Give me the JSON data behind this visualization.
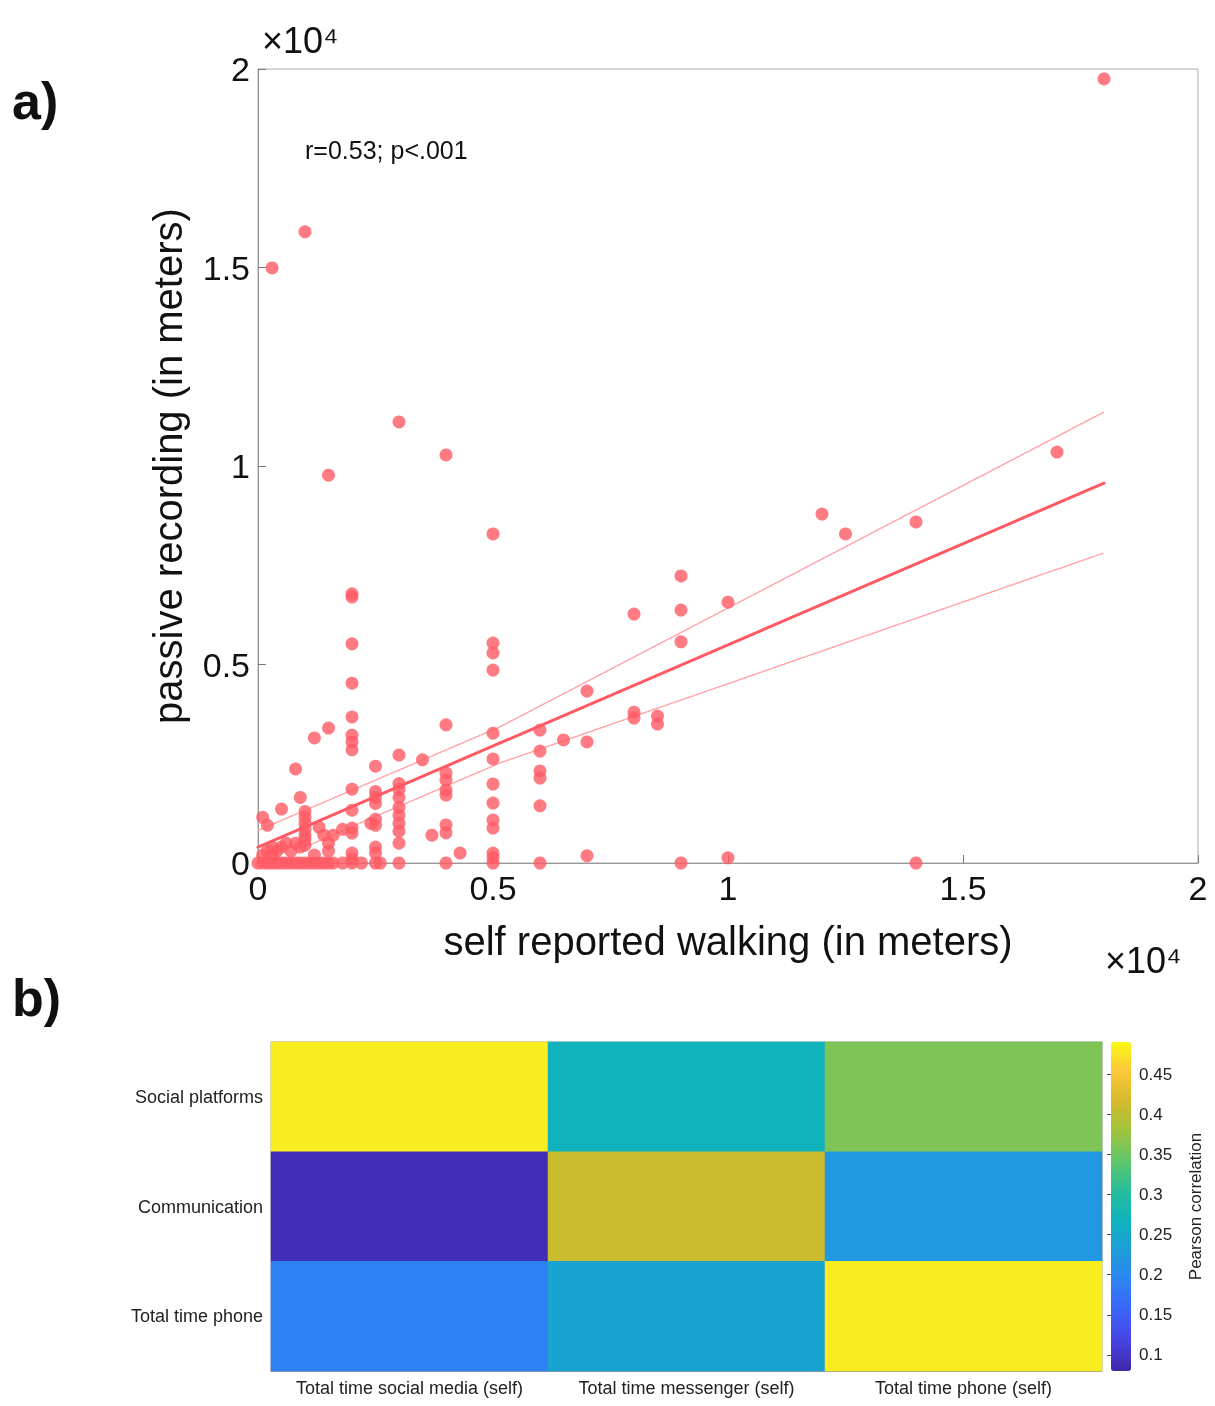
{
  "chart_data": [
    {
      "type": "scatter",
      "xlabel": "self reported walking (in meters)",
      "ylabel": "passive recording (in meters)",
      "annotations": [
        "a)",
        "r=0.53; p<.001",
        "×10⁴",
        "×10⁴"
      ],
      "xlim": [
        0,
        2
      ],
      "ylim": [
        0,
        2
      ],
      "xticks": [
        0,
        0.5,
        1,
        1.5,
        2
      ],
      "yticks": [
        0,
        0.5,
        1,
        1.5,
        2
      ],
      "grid": false,
      "series": [
        {
          "type": "scatter",
          "color": "#ff5a64",
          "marker": "circle",
          "x": [
            0,
            0.01,
            0.02,
            0.03,
            0.04,
            0.05,
            0.06,
            0.07,
            0.08,
            0.09,
            0.1,
            0.11,
            0.12,
            0.13,
            0.14,
            0.15,
            0.16,
            0.01,
            0.02,
            0.03,
            0.04,
            0.05,
            0.06,
            0.07,
            0.08,
            0.09,
            0.1,
            0.01,
            0.02,
            0.03,
            0.05,
            0.08,
            0.12,
            0.15,
            0.09,
            0.1,
            0.1,
            0.1,
            0.1,
            0.1,
            0.1,
            0.12,
            0.13,
            0.14,
            0.15,
            0.15,
            0.16,
            0.2,
            0.2,
            0.2,
            0.2,
            0.2,
            0.2,
            0.2,
            0.2,
            0.2,
            0.2,
            0.2,
            0.2,
            0.2,
            0.2,
            0.2,
            0.18,
            0.18,
            0.22,
            0.25,
            0.25,
            0.25,
            0.25,
            0.25,
            0.25,
            0.25,
            0.25,
            0.25,
            0.24,
            0.26,
            0.3,
            0.3,
            0.3,
            0.3,
            0.3,
            0.3,
            0.3,
            0.3,
            0.3,
            0.3,
            0.35,
            0.37,
            0.43,
            0.4,
            0.4,
            0.4,
            0.4,
            0.4,
            0.4,
            0.4,
            0.4,
            0.5,
            0.5,
            0.5,
            0.5,
            0.5,
            0.5,
            0.5,
            0.5,
            0.5,
            0.5,
            0.5,
            0.5,
            0.5,
            0.6,
            0.6,
            0.6,
            0.6,
            0.6,
            0.6,
            0.65,
            0.7,
            0.7,
            0.7,
            0.8,
            0.8,
            0.8,
            0.85,
            0.85,
            0.9,
            0.9,
            0.9,
            0.9,
            1,
            1,
            1.2,
            1.25,
            1.4,
            1.4,
            1.7,
            1.8,
            0.03,
            0.1,
            0.15,
            0.3,
            0.4
          ],
          "values": [
            0,
            0,
            0,
            0,
            0,
            0,
            0,
            0,
            0,
            0,
            0,
            0,
            0,
            0,
            0,
            0,
            0,
            0.02,
            0.03,
            0.02,
            0.03,
            0.04,
            0.05,
            0.03,
            0.05,
            0.04,
            0.06,
            0.115,
            0.095,
            0.04,
            0.136,
            0.237,
            0.315,
            0.34,
            0.165,
            0.13,
            0.115,
            0.1,
            0.085,
            0.07,
            0.045,
            0.02,
            0.09,
            0.07,
            0.05,
            0.03,
            0.07,
            0.678,
            0.67,
            0.552,
            0.453,
            0.368,
            0.322,
            0.305,
            0.285,
            0.186,
            0.133,
            0.088,
            0.075,
            0.025,
            0.01,
            0,
            0.085,
            0,
            0,
            0.244,
            0.18,
            0.165,
            0.15,
            0.11,
            0.095,
            0.04,
            0.025,
            0,
            0.1,
            0,
            0.272,
            0.2,
            0.185,
            0.165,
            0.14,
            0.12,
            0.1,
            0.08,
            0.05,
            0,
            0.26,
            0.07,
            0.025,
            0.348,
            0.227,
            0.209,
            0.184,
            0.171,
            0.096,
            0.076,
            0,
            0.829,
            0.554,
            0.529,
            0.486,
            0.327,
            0.262,
            0.199,
            0.151,
            0.108,
            0.088,
            0.025,
            0.013,
            0,
            0.335,
            0.282,
            0.232,
            0.214,
            0.144,
            0,
            0.31,
            0.433,
            0.305,
            0.018,
            0.627,
            0.38,
            0.365,
            0.37,
            0.35,
            0.723,
            0.637,
            0.557,
            0,
            0.657,
            0.013,
            0.879,
            0.829,
            0.859,
            0,
            1.035,
            1.975,
            1.499,
            1.59,
            0.977,
            1.111,
            1.028
          ]
        },
        {
          "type": "line",
          "color": "#ff5a64",
          "line_style": "solid",
          "marker": "none",
          "x": [
            0,
            1.8
          ],
          "values": [
            0.04,
            0.957
          ]
        },
        {
          "type": "line",
          "color": "#ff9fa4",
          "line_style": "dotted",
          "marker": "none",
          "x": [
            0,
            0.515,
            1.8
          ],
          "values": [
            0.082,
            0.343,
            1.136
          ]
        },
        {
          "type": "line",
          "color": "#ff9fa4",
          "line_style": "dotted",
          "marker": "none",
          "x": [
            0.1,
            0.196,
            0.515,
            1.8
          ],
          "values": [
            0.04,
            0.09,
            0.252,
            0.781
          ]
        }
      ]
    },
    {
      "type": "heatmap",
      "annotations": [
        "b)"
      ],
      "clabel": "Pearson correlation",
      "categories": [
        "Total time social media (self)",
        "Total time messenger (self)",
        "Total time phone (self)"
      ],
      "y_categories": [
        "Social platforms",
        "Communication",
        "Total time phone"
      ],
      "cells": [
        [
          0.48,
          0.27,
          0.36
        ],
        [
          0.09,
          0.41,
          0.22
        ],
        [
          0.19,
          0.24,
          0.48
        ]
      ],
      "clim": [
        0.08,
        0.49
      ],
      "cticks": [
        0.1,
        0.15,
        0.2,
        0.25,
        0.3,
        0.35,
        0.4,
        0.45
      ]
    }
  ]
}
